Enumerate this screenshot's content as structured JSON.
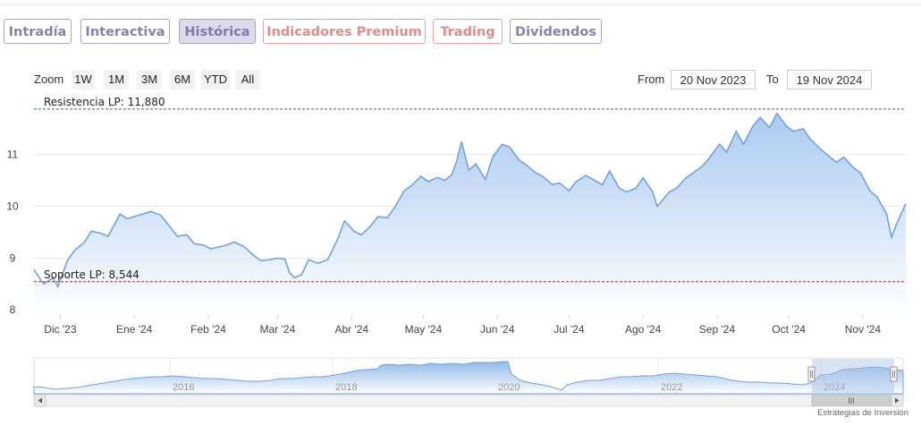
{
  "tabs": [
    {
      "label": "Intradía",
      "state": "normal"
    },
    {
      "label": "Interactiva",
      "state": "normal"
    },
    {
      "label": "Histórica",
      "state": "active"
    },
    {
      "label": "Indicadores Premium",
      "state": "premium"
    },
    {
      "label": "Trading",
      "state": "premium"
    },
    {
      "label": "Dividendos",
      "state": "normal"
    }
  ],
  "zoom": {
    "label": "Zoom",
    "buttons": [
      "1W",
      "1M",
      "3M",
      "6M",
      "YTD",
      "All"
    ]
  },
  "range": {
    "from_label": "From",
    "from_value": "20 Nov 2023",
    "to_label": "To",
    "to_value": "19 Nov 2024"
  },
  "credits": "Estrategias de Inversión",
  "colors": {
    "line": "#6fa3de",
    "fill_top": "#a7c8ef",
    "fill_bottom": "#ffffff",
    "resistance": "#3a7a3a",
    "support": "#9e2a2a",
    "tab_border": "#a9a5c2",
    "tab_text": "#8781ae",
    "premium": "#df8c8c"
  },
  "chart_data": {
    "type": "area",
    "grid": true,
    "yaxis": {
      "min": 7.9,
      "max": 12.05,
      "ticks": [
        8,
        9,
        10,
        11
      ]
    },
    "xaxis": {
      "min": "2023-11-20",
      "max": "2024-11-19",
      "ticks": [
        {
          "date": "2023-12-01",
          "label": "Dic '23"
        },
        {
          "date": "2024-01-01",
          "label": "Ene '24"
        },
        {
          "date": "2024-02-01",
          "label": "Feb '24"
        },
        {
          "date": "2024-03-01",
          "label": "Mar '24"
        },
        {
          "date": "2024-04-01",
          "label": "Abr '24"
        },
        {
          "date": "2024-05-01",
          "label": "May '24"
        },
        {
          "date": "2024-06-01",
          "label": "Jun '24"
        },
        {
          "date": "2024-07-01",
          "label": "Jul '24"
        },
        {
          "date": "2024-08-01",
          "label": "Ago '24"
        },
        {
          "date": "2024-09-01",
          "label": "Sep '24"
        },
        {
          "date": "2024-10-01",
          "label": "Oct '24"
        },
        {
          "date": "2024-11-01",
          "label": "Nov '24"
        }
      ]
    },
    "plotlines": [
      {
        "label": "Resistencia LP: 11,880",
        "value": 11.88,
        "style": "dashed",
        "color": "#3a7a3a"
      },
      {
        "label": "Soporte LP: 8,544",
        "value": 8.544,
        "style": "dashed",
        "color": "#9e2a2a"
      }
    ],
    "series": [
      {
        "points": [
          [
            "2023-11-20",
            8.78
          ],
          [
            "2023-11-24",
            8.5
          ],
          [
            "2023-11-28",
            8.62
          ],
          [
            "2023-11-30",
            8.45
          ],
          [
            "2023-12-04",
            8.95
          ],
          [
            "2023-12-07",
            9.15
          ],
          [
            "2023-12-11",
            9.3
          ],
          [
            "2023-12-14",
            9.52
          ],
          [
            "2023-12-18",
            9.48
          ],
          [
            "2023-12-21",
            9.42
          ],
          [
            "2023-12-26",
            9.85
          ],
          [
            "2023-12-29",
            9.76
          ],
          [
            "2024-01-03",
            9.83
          ],
          [
            "2024-01-08",
            9.9
          ],
          [
            "2024-01-12",
            9.83
          ],
          [
            "2024-01-16",
            9.6
          ],
          [
            "2024-01-19",
            9.42
          ],
          [
            "2024-01-23",
            9.45
          ],
          [
            "2024-01-26",
            9.28
          ],
          [
            "2024-01-30",
            9.25
          ],
          [
            "2024-02-02",
            9.18
          ],
          [
            "2024-02-07",
            9.23
          ],
          [
            "2024-02-12",
            9.31
          ],
          [
            "2024-02-16",
            9.22
          ],
          [
            "2024-02-20",
            9.05
          ],
          [
            "2024-02-23",
            8.95
          ],
          [
            "2024-02-27",
            8.97
          ],
          [
            "2024-03-01",
            9.0
          ],
          [
            "2024-03-04",
            8.98
          ],
          [
            "2024-03-06",
            8.72
          ],
          [
            "2024-03-08",
            8.62
          ],
          [
            "2024-03-11",
            8.68
          ],
          [
            "2024-03-14",
            8.97
          ],
          [
            "2024-03-18",
            8.9
          ],
          [
            "2024-03-22",
            8.97
          ],
          [
            "2024-03-26",
            9.35
          ],
          [
            "2024-03-29",
            9.72
          ],
          [
            "2024-04-02",
            9.52
          ],
          [
            "2024-04-05",
            9.45
          ],
          [
            "2024-04-09",
            9.62
          ],
          [
            "2024-04-12",
            9.8
          ],
          [
            "2024-04-16",
            9.78
          ],
          [
            "2024-04-19",
            9.98
          ],
          [
            "2024-04-23",
            10.3
          ],
          [
            "2024-04-26",
            10.4
          ],
          [
            "2024-04-30",
            10.58
          ],
          [
            "2024-05-03",
            10.48
          ],
          [
            "2024-05-07",
            10.56
          ],
          [
            "2024-05-10",
            10.5
          ],
          [
            "2024-05-13",
            10.62
          ],
          [
            "2024-05-15",
            10.88
          ],
          [
            "2024-05-17",
            11.25
          ],
          [
            "2024-05-20",
            10.7
          ],
          [
            "2024-05-23",
            10.82
          ],
          [
            "2024-05-27",
            10.52
          ],
          [
            "2024-05-30",
            10.95
          ],
          [
            "2024-06-03",
            11.2
          ],
          [
            "2024-06-06",
            11.15
          ],
          [
            "2024-06-10",
            10.9
          ],
          [
            "2024-06-13",
            10.8
          ],
          [
            "2024-06-17",
            10.65
          ],
          [
            "2024-06-20",
            10.58
          ],
          [
            "2024-06-24",
            10.42
          ],
          [
            "2024-06-27",
            10.45
          ],
          [
            "2024-07-01",
            10.3
          ],
          [
            "2024-07-04",
            10.48
          ],
          [
            "2024-07-08",
            10.6
          ],
          [
            "2024-07-11",
            10.52
          ],
          [
            "2024-07-15",
            10.42
          ],
          [
            "2024-07-18",
            10.68
          ],
          [
            "2024-07-22",
            10.35
          ],
          [
            "2024-07-25",
            10.28
          ],
          [
            "2024-07-29",
            10.35
          ],
          [
            "2024-08-01",
            10.55
          ],
          [
            "2024-08-05",
            10.28
          ],
          [
            "2024-08-07",
            10.0
          ],
          [
            "2024-08-12",
            10.28
          ],
          [
            "2024-08-15",
            10.35
          ],
          [
            "2024-08-19",
            10.55
          ],
          [
            "2024-08-22",
            10.65
          ],
          [
            "2024-08-26",
            10.78
          ],
          [
            "2024-08-29",
            10.95
          ],
          [
            "2024-09-02",
            11.2
          ],
          [
            "2024-09-05",
            11.05
          ],
          [
            "2024-09-09",
            11.45
          ],
          [
            "2024-09-12",
            11.2
          ],
          [
            "2024-09-16",
            11.55
          ],
          [
            "2024-09-19",
            11.72
          ],
          [
            "2024-09-23",
            11.52
          ],
          [
            "2024-09-26",
            11.8
          ],
          [
            "2024-09-30",
            11.55
          ],
          [
            "2024-10-03",
            11.45
          ],
          [
            "2024-10-07",
            11.5
          ],
          [
            "2024-10-10",
            11.3
          ],
          [
            "2024-10-14",
            11.12
          ],
          [
            "2024-10-17",
            11.0
          ],
          [
            "2024-10-21",
            10.85
          ],
          [
            "2024-10-24",
            10.95
          ],
          [
            "2024-10-28",
            10.75
          ],
          [
            "2024-10-31",
            10.65
          ],
          [
            "2024-11-04",
            10.3
          ],
          [
            "2024-11-07",
            10.18
          ],
          [
            "2024-11-11",
            9.85
          ],
          [
            "2024-11-13",
            9.4
          ],
          [
            "2024-11-15",
            9.65
          ],
          [
            "2024-11-19",
            10.05
          ]
        ]
      }
    ]
  },
  "navigator": {
    "year_labels": [
      "2016",
      "2018",
      "2020",
      "2022",
      "2024"
    ],
    "scrollbar_grip": "III"
  }
}
